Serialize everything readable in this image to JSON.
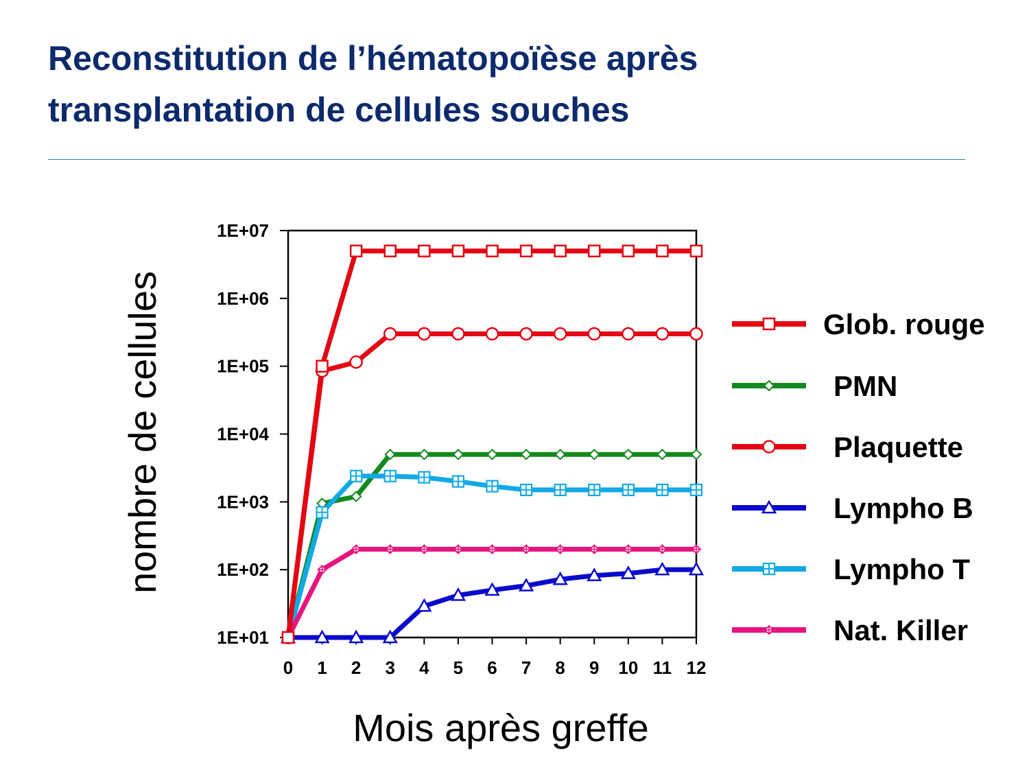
{
  "slide": {
    "title_line1": "Reconstitution de l’hématopoïèse après",
    "title_line2": "transplantation de cellules souches"
  },
  "chart_data": {
    "type": "line",
    "title": "",
    "xlabel": "Mois après greffe",
    "ylabel": "nombre de cellules",
    "x": [
      0,
      1,
      2,
      3,
      4,
      5,
      6,
      7,
      8,
      9,
      10,
      11,
      12
    ],
    "xlim": [
      0,
      12
    ],
    "y_scale": "log",
    "ylim": [
      10,
      10000000
    ],
    "y_ticks": [
      10,
      100,
      1000,
      10000,
      100000,
      1000000,
      10000000
    ],
    "y_tick_labels": [
      "1E+01",
      "1E+02",
      "1E+03",
      "1E+04",
      "1E+05",
      "1E+06",
      "1E+07"
    ],
    "grid": false,
    "legend_position": "right",
    "series": [
      {
        "name": "Glob. rouge",
        "color": "#e30613",
        "marker": "square",
        "values": [
          10,
          100000,
          5000000,
          5000000,
          5000000,
          5000000,
          5000000,
          5000000,
          5000000,
          5000000,
          5000000,
          5000000,
          5000000
        ]
      },
      {
        "name": "PMN",
        "color": "#138a1e",
        "marker": "diamond",
        "values": [
          10,
          950,
          1200,
          5000,
          5000,
          5000,
          5000,
          5000,
          5000,
          5000,
          5000,
          5000,
          5000
        ]
      },
      {
        "name": "Plaquette",
        "color": "#e30613",
        "marker": "circle",
        "values": [
          10,
          85000,
          115000,
          300000,
          300000,
          300000,
          300000,
          300000,
          300000,
          300000,
          300000,
          300000,
          300000
        ]
      },
      {
        "name": "Lympho B",
        "color": "#0a0acc",
        "marker": "triangle",
        "values": [
          10,
          10,
          10,
          10,
          29,
          42,
          50,
          58,
          72,
          82,
          88,
          100,
          100
        ]
      },
      {
        "name": "Lympho T",
        "color": "#12a9e6",
        "marker": "square-plus",
        "values": [
          10,
          700,
          2400,
          2400,
          2300,
          2000,
          1700,
          1500,
          1500,
          1500,
          1500,
          1500,
          1500
        ]
      },
      {
        "name": "Nat. Killer",
        "color": "#e8137d",
        "marker": "plus",
        "values": [
          10,
          100,
          200,
          200,
          200,
          200,
          200,
          200,
          200,
          200,
          200,
          200,
          200
        ]
      }
    ]
  }
}
